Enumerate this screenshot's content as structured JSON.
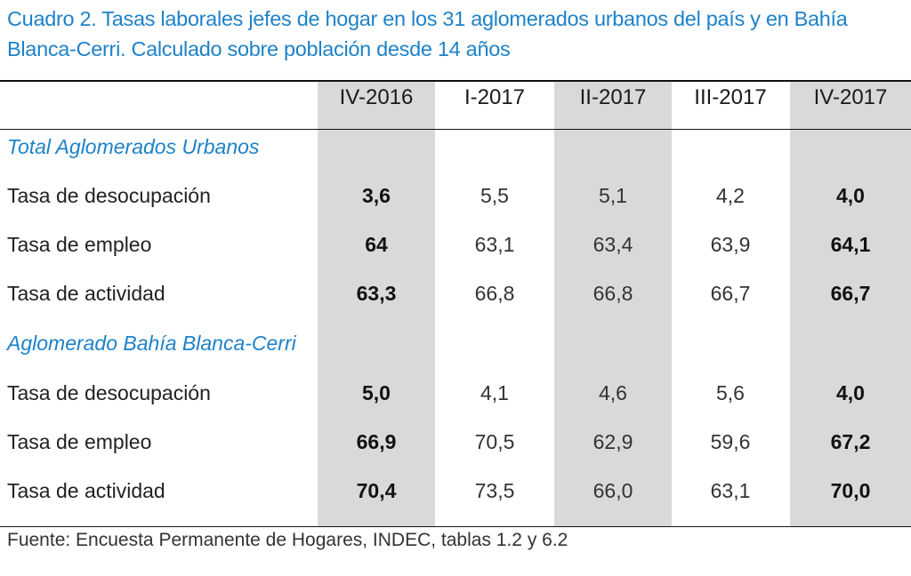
{
  "title": "Cuadro 2. Tasas laborales jefes de hogar en los 31 aglomerados urbanos del país y en Bahía Blanca-Cerri. Calculado sobre población desde 14 años",
  "columns": [
    "IV-2016",
    "I-2017",
    "II-2017",
    "III-2017",
    "IV-2017"
  ],
  "sections": [
    {
      "name": "Total Aglomerados Urbanos",
      "rows": [
        {
          "label": "Tasa de desocupación",
          "values": [
            "3,6",
            "5,5",
            "5,1",
            "4,2",
            "4,0"
          ]
        },
        {
          "label": "Tasa de empleo",
          "values": [
            "64",
            "63,1",
            "63,4",
            "63,9",
            "64,1"
          ]
        },
        {
          "label": "Tasa de actividad",
          "values": [
            "63,3",
            "66,8",
            "66,8",
            "66,7",
            "66,7"
          ]
        }
      ]
    },
    {
      "name": "Aglomerado Bahía Blanca-Cerri",
      "rows": [
        {
          "label": "Tasa de desocupación",
          "values": [
            "5,0",
            "4,1",
            "4,6",
            "5,6",
            "4,0"
          ]
        },
        {
          "label": "Tasa de empleo",
          "values": [
            "66,9",
            "70,5",
            "62,9",
            "59,6",
            "67,2"
          ]
        },
        {
          "label": "Tasa de actividad",
          "values": [
            "70,4",
            "73,5",
            "66,0",
            "63,1",
            "70,0"
          ]
        }
      ]
    }
  ],
  "source": "Fuente: Encuesta Permanente de Hogares, INDEC, tablas 1.2 y 6.2",
  "colors": {
    "title": "#1e82c8",
    "section": "#1e82c8",
    "highlight_column": "#d9d9d9"
  }
}
